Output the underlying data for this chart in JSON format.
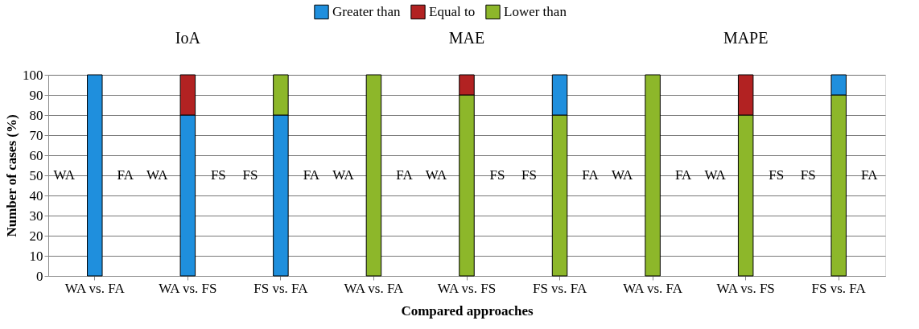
{
  "chart_data": {
    "type": "bar",
    "stacked": true,
    "categories": [
      "WA vs. FA",
      "WA vs. FS",
      "FS vs. FA",
      "WA vs. FA",
      "WA vs. FS",
      "FS vs. FA",
      "WA vs. FA",
      "WA vs. FS",
      "FS vs. FA"
    ],
    "series": [
      {
        "name": "Greater than",
        "color": "#1f8fdd",
        "values": [
          100,
          80,
          80,
          null,
          null,
          null,
          null,
          null,
          null
        ]
      },
      {
        "name": "Equal to",
        "color": "#b22222",
        "values": [
          null,
          20,
          null,
          null,
          null,
          null,
          null,
          null,
          null
        ]
      },
      {
        "name": "Lower than",
        "color": "#8db72a",
        "values": [
          null,
          null,
          20,
          100,
          90,
          80,
          100,
          80,
          90
        ]
      },
      {
        "color": "#b22222",
        "values": [
          null,
          null,
          null,
          null,
          10,
          null,
          null,
          20,
          null
        ]
      },
      {
        "color": "#1f8fdd",
        "values": [
          null,
          null,
          null,
          null,
          null,
          20,
          null,
          null,
          10
        ]
      }
    ],
    "xlabel": "Compared approaches",
    "ylabel": "Number of cases (%)",
    "ylim": [
      0,
      100
    ],
    "yticks": [
      0,
      10,
      20,
      30,
      40,
      50,
      60,
      70,
      80,
      90,
      100
    ],
    "grid": "y",
    "legend": "top",
    "annotations": [
      "IoA",
      "MAE",
      "MAPE",
      "WA",
      "FA",
      "WA",
      "FS",
      "FS",
      "FA",
      "WA",
      "FA",
      "WA",
      "FS",
      "FS",
      "FA",
      "WA",
      "FA",
      "WA",
      "FS",
      "FS",
      "FA"
    ]
  }
}
